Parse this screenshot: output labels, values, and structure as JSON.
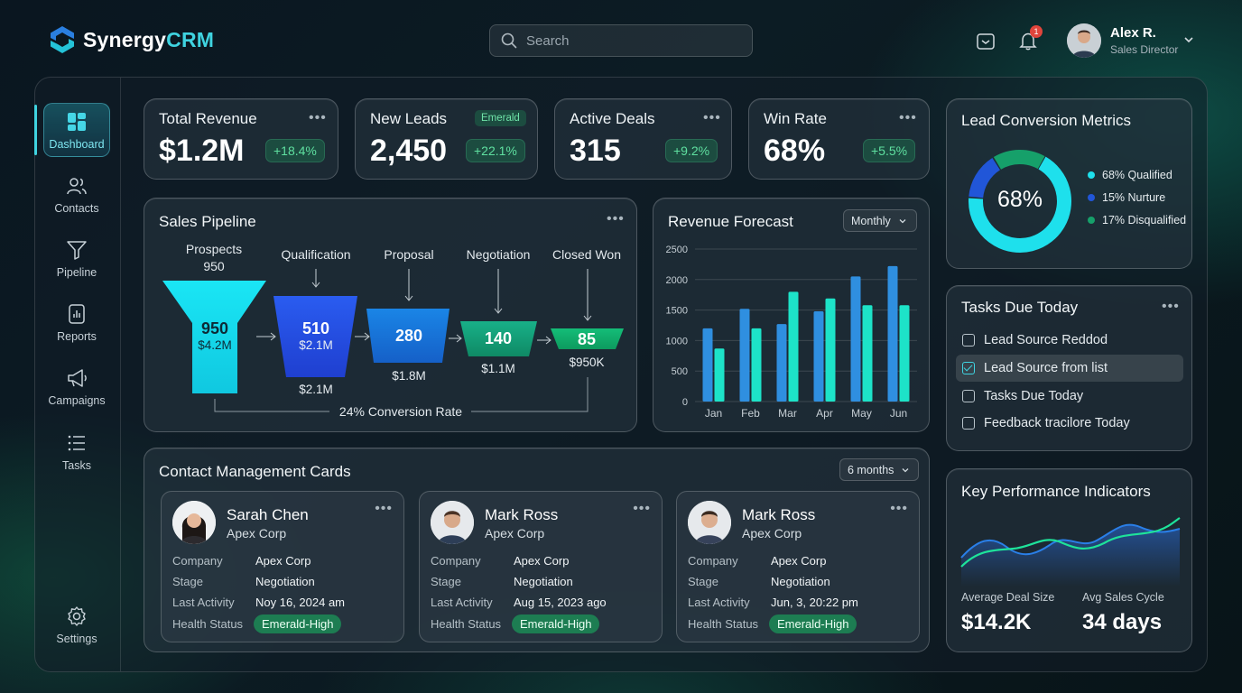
{
  "app": {
    "name_part1": "Synergy",
    "name_part2": "CRM",
    "brand_color": "#3fd3e0"
  },
  "search": {
    "placeholder": "Search"
  },
  "header": {
    "notification_count": "1",
    "user_name": "Alex R.",
    "user_role": "Sales Director"
  },
  "sidebar": {
    "items": [
      {
        "label": "Dashboard",
        "icon": "dashboard-icon",
        "active": true
      },
      {
        "label": "Contacts",
        "icon": "contacts-icon"
      },
      {
        "label": "Pipeline",
        "icon": "funnel-icon"
      },
      {
        "label": "Reports",
        "icon": "reports-icon"
      },
      {
        "label": "Campaigns",
        "icon": "megaphone-icon"
      },
      {
        "label": "Tasks",
        "icon": "list-icon"
      },
      {
        "label": "Settings",
        "icon": "gear-icon"
      }
    ]
  },
  "stats": [
    {
      "label": "Total Revenue",
      "value": "$1.2M",
      "change": "+18.4%"
    },
    {
      "label": "New Leads",
      "value": "2,450",
      "change": "+22.1%",
      "tag": "Emerald"
    },
    {
      "label": "Active Deals",
      "value": "315",
      "change": "+9.2%"
    },
    {
      "label": "Win Rate",
      "value": "68%",
      "change": "+5.5%"
    }
  ],
  "pipeline": {
    "title": "Sales Pipeline",
    "stages": [
      {
        "label": "Prospects",
        "count_label": "950",
        "count": "950",
        "amount": "$4.2M",
        "color": "#16e0f0"
      },
      {
        "label": "Qualification",
        "count": "510",
        "amount": "$2.1M",
        "below": "$2.1M",
        "color": "#2150e0"
      },
      {
        "label": "Proposal",
        "count": "280",
        "below": "$1.8M",
        "color": "#1a6fd8"
      },
      {
        "label": "Negotiation",
        "count": "140",
        "below": "$1.1M",
        "color": "#139a78"
      },
      {
        "label": "Closed Won",
        "count": "85",
        "below": "$950K",
        "color": "#10a86a"
      }
    ],
    "conversion": "24% Conversion Rate"
  },
  "forecast": {
    "title": "Revenue Forecast",
    "period": "Monthly"
  },
  "chart_data": {
    "type": "bar",
    "title": "Revenue Forecast",
    "categories": [
      "Jan",
      "Feb",
      "Mar",
      "Apr",
      "May",
      "Jun"
    ],
    "series": [
      {
        "values": [
          1200,
          1520,
          1270,
          1480,
          2050,
          2220
        ],
        "color": "#2f8fe0"
      },
      {
        "values": [
          870,
          1200,
          1800,
          1690,
          1580,
          1580
        ],
        "color": "#1de3c8"
      }
    ],
    "ylim": [
      0,
      2500
    ],
    "yticks": [
      0,
      500,
      1000,
      1500,
      2000,
      2500
    ],
    "grid": true
  },
  "conversion_metrics": {
    "title": "Lead Conversion Metrics",
    "center": "68%",
    "segments": [
      {
        "label": "68% Qualified",
        "value": 68,
        "color": "#1ee0ec"
      },
      {
        "label": "15% Nurture",
        "value": 15,
        "color": "#2156d8"
      },
      {
        "label": "17% Disqualified",
        "value": 17,
        "color": "#16a06a"
      }
    ]
  },
  "tasks": {
    "title": "Tasks Due Today",
    "items": [
      {
        "label": "Lead Source Reddod",
        "checked": false
      },
      {
        "label": "Lead Source from list",
        "checked": true
      },
      {
        "label": "Tasks Due Today",
        "checked": false
      },
      {
        "label": "Feedback tracilore Today",
        "checked": false
      }
    ]
  },
  "contacts": {
    "title": "Contact Management Cards",
    "range": "6 months",
    "labels": {
      "company": "Company",
      "stage": "Stage",
      "last_activity": "Last Activity",
      "health": "Health Status"
    },
    "cards": [
      {
        "name": "Sarah Chen",
        "org": "Apex Corp",
        "company": "Apex Corp",
        "stage": "Negotiation",
        "last_activity": "Noy 16, 2024 am",
        "health": "Emerald-High"
      },
      {
        "name": "Mark Ross",
        "org": "Apex Corp",
        "company": "Apex Corp",
        "stage": "Negotiation",
        "last_activity": "Aug 15, 2023 ago",
        "health": "Emerald-High"
      },
      {
        "name": "Mark Ross",
        "org": "Apex Corp",
        "company": "Apex Corp",
        "stage": "Negotiation",
        "last_activity": "Jun, 3, 20:22 pm",
        "health": "Emerald-High"
      }
    ]
  },
  "kpi": {
    "title": "Key Performance Indicators",
    "metrics": [
      {
        "label": "Average Deal Size",
        "value": "$14.2K"
      },
      {
        "label": "Avg Sales Cycle",
        "value": "34 days"
      }
    ]
  }
}
